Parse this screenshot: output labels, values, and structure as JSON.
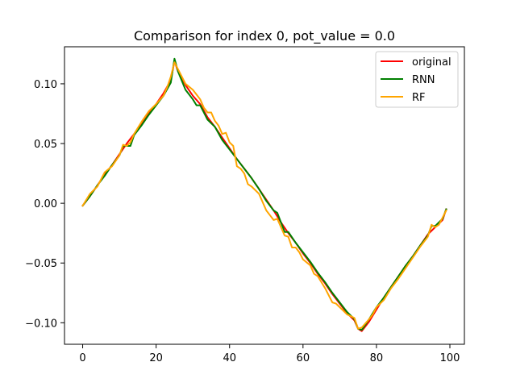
{
  "chart_data": {
    "type": "line",
    "title": "Comparison for index 0, pot_value = 0.0",
    "xlabel": "",
    "ylabel": "",
    "xlim": [
      -4.95,
      103.95
    ],
    "ylim": [
      -0.118,
      0.131
    ],
    "xticks": [
      0,
      20,
      40,
      60,
      80,
      100
    ],
    "xtick_labels": [
      "0",
      "20",
      "40",
      "60",
      "80",
      "100"
    ],
    "yticks": [
      -0.1,
      -0.05,
      0.0,
      0.05,
      0.1
    ],
    "ytick_labels": [
      "−0.10",
      "−0.05",
      "0.00",
      "0.05",
      "0.10"
    ],
    "grid": false,
    "legend_position": "top-right",
    "series": [
      {
        "name": "original",
        "color": "#ff0000",
        "points": [
          [
            0,
            -0.002
          ],
          [
            2,
            0.006
          ],
          [
            4,
            0.015
          ],
          [
            6,
            0.024
          ],
          [
            8,
            0.032
          ],
          [
            10,
            0.041
          ],
          [
            12,
            0.05
          ],
          [
            14,
            0.058
          ],
          [
            16,
            0.066
          ],
          [
            18,
            0.075
          ],
          [
            20,
            0.083
          ],
          [
            22,
            0.092
          ],
          [
            24,
            0.103
          ],
          [
            25,
            0.119
          ],
          [
            26,
            0.11
          ],
          [
            28,
            0.099
          ],
          [
            30,
            0.09
          ],
          [
            32,
            0.083
          ],
          [
            34,
            0.072
          ],
          [
            36,
            0.064
          ],
          [
            38,
            0.055
          ],
          [
            40,
            0.046
          ],
          [
            42,
            0.037
          ],
          [
            44,
            0.029
          ],
          [
            46,
            0.021
          ],
          [
            48,
            0.012
          ],
          [
            50,
            0.003
          ],
          [
            52,
            -0.006
          ],
          [
            54,
            -0.016
          ],
          [
            56,
            -0.025
          ],
          [
            58,
            -0.033
          ],
          [
            60,
            -0.042
          ],
          [
            62,
            -0.05
          ],
          [
            64,
            -0.059
          ],
          [
            66,
            -0.067
          ],
          [
            68,
            -0.076
          ],
          [
            70,
            -0.084
          ],
          [
            72,
            -0.092
          ],
          [
            74,
            -0.098
          ],
          [
            75,
            -0.105
          ],
          [
            76,
            -0.107
          ],
          [
            78,
            -0.099
          ],
          [
            80,
            -0.089
          ],
          [
            82,
            -0.079
          ],
          [
            84,
            -0.07
          ],
          [
            86,
            -0.061
          ],
          [
            88,
            -0.052
          ],
          [
            90,
            -0.044
          ],
          [
            92,
            -0.035
          ],
          [
            94,
            -0.026
          ],
          [
            96,
            -0.02
          ],
          [
            98,
            -0.014
          ],
          [
            99,
            -0.005
          ]
        ]
      },
      {
        "name": "RNN",
        "color": "#008000",
        "points": [
          [
            0,
            -0.002
          ],
          [
            2,
            0.006
          ],
          [
            4,
            0.015
          ],
          [
            6,
            0.023
          ],
          [
            8,
            0.032
          ],
          [
            10,
            0.04
          ],
          [
            11,
            0.048
          ],
          [
            13,
            0.048
          ],
          [
            14,
            0.057
          ],
          [
            16,
            0.065
          ],
          [
            18,
            0.074
          ],
          [
            20,
            0.082
          ],
          [
            22,
            0.09
          ],
          [
            24,
            0.101
          ],
          [
            25,
            0.121
          ],
          [
            26,
            0.11
          ],
          [
            28,
            0.095
          ],
          [
            30,
            0.087
          ],
          [
            31,
            0.082
          ],
          [
            32,
            0.082
          ],
          [
            34,
            0.07
          ],
          [
            36,
            0.064
          ],
          [
            38,
            0.053
          ],
          [
            40,
            0.045
          ],
          [
            42,
            0.037
          ],
          [
            44,
            0.029
          ],
          [
            46,
            0.021
          ],
          [
            48,
            0.012
          ],
          [
            50,
            0.002
          ],
          [
            52,
            -0.006
          ],
          [
            53,
            -0.008
          ],
          [
            55,
            -0.024
          ],
          [
            56,
            -0.024
          ],
          [
            58,
            -0.033
          ],
          [
            60,
            -0.041
          ],
          [
            62,
            -0.049
          ],
          [
            64,
            -0.058
          ],
          [
            66,
            -0.066
          ],
          [
            68,
            -0.075
          ],
          [
            70,
            -0.083
          ],
          [
            72,
            -0.091
          ],
          [
            74,
            -0.097
          ],
          [
            75,
            -0.105
          ],
          [
            76,
            -0.106
          ],
          [
            78,
            -0.097
          ],
          [
            80,
            -0.087
          ],
          [
            82,
            -0.079
          ],
          [
            84,
            -0.07
          ],
          [
            86,
            -0.061
          ],
          [
            88,
            -0.052
          ],
          [
            90,
            -0.044
          ],
          [
            92,
            -0.035
          ],
          [
            94,
            -0.027
          ],
          [
            95,
            -0.019
          ],
          [
            96,
            -0.019
          ],
          [
            98,
            -0.013
          ],
          [
            99,
            -0.005
          ]
        ]
      },
      {
        "name": "RF",
        "color": "#ffa500",
        "points": [
          [
            0,
            -0.002
          ],
          [
            2,
            0.008
          ],
          [
            4,
            0.014
          ],
          [
            6,
            0.026
          ],
          [
            8,
            0.031
          ],
          [
            10,
            0.04
          ],
          [
            11,
            0.049
          ],
          [
            12,
            0.048
          ],
          [
            13,
            0.051
          ],
          [
            14,
            0.058
          ],
          [
            16,
            0.068
          ],
          [
            18,
            0.077
          ],
          [
            20,
            0.083
          ],
          [
            22,
            0.09
          ],
          [
            23,
            0.097
          ],
          [
            24,
            0.106
          ],
          [
            25,
            0.118
          ],
          [
            26,
            0.112
          ],
          [
            28,
            0.1
          ],
          [
            30,
            0.095
          ],
          [
            31,
            0.091
          ],
          [
            32,
            0.087
          ],
          [
            33,
            0.08
          ],
          [
            34,
            0.076
          ],
          [
            35,
            0.076
          ],
          [
            36,
            0.069
          ],
          [
            37,
            0.065
          ],
          [
            38,
            0.058
          ],
          [
            39,
            0.059
          ],
          [
            40,
            0.051
          ],
          [
            41,
            0.048
          ],
          [
            42,
            0.031
          ],
          [
            43,
            0.029
          ],
          [
            44,
            0.025
          ],
          [
            45,
            0.016
          ],
          [
            46,
            0.014
          ],
          [
            48,
            0.008
          ],
          [
            50,
            -0.006
          ],
          [
            51,
            -0.01
          ],
          [
            52,
            -0.014
          ],
          [
            53,
            -0.013
          ],
          [
            54,
            -0.02
          ],
          [
            55,
            -0.027
          ],
          [
            56,
            -0.028
          ],
          [
            57,
            -0.037
          ],
          [
            58,
            -0.037
          ],
          [
            59,
            -0.041
          ],
          [
            60,
            -0.047
          ],
          [
            62,
            -0.052
          ],
          [
            63,
            -0.059
          ],
          [
            64,
            -0.061
          ],
          [
            66,
            -0.071
          ],
          [
            68,
            -0.083
          ],
          [
            69,
            -0.084
          ],
          [
            70,
            -0.087
          ],
          [
            72,
            -0.093
          ],
          [
            74,
            -0.096
          ],
          [
            75,
            -0.105
          ],
          [
            76,
            -0.104
          ],
          [
            78,
            -0.097
          ],
          [
            79,
            -0.093
          ],
          [
            80,
            -0.087
          ],
          [
            82,
            -0.081
          ],
          [
            84,
            -0.071
          ],
          [
            86,
            -0.063
          ],
          [
            88,
            -0.054
          ],
          [
            90,
            -0.045
          ],
          [
            92,
            -0.036
          ],
          [
            94,
            -0.028
          ],
          [
            95,
            -0.018
          ],
          [
            96,
            -0.02
          ],
          [
            97,
            -0.018
          ],
          [
            98,
            -0.012
          ],
          [
            99,
            -0.006
          ]
        ]
      }
    ]
  }
}
